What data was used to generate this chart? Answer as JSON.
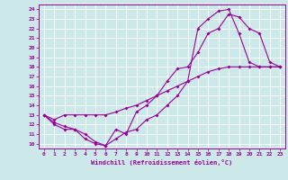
{
  "title": "",
  "xlabel": "Windchill (Refroidissement éolien,°C)",
  "ylabel": "",
  "xlim": [
    -0.5,
    23.5
  ],
  "ylim": [
    9.5,
    24.5
  ],
  "xticks": [
    0,
    1,
    2,
    3,
    4,
    5,
    6,
    7,
    8,
    9,
    10,
    11,
    12,
    13,
    14,
    15,
    16,
    17,
    18,
    19,
    20,
    21,
    22,
    23
  ],
  "yticks": [
    10,
    11,
    12,
    13,
    14,
    15,
    16,
    17,
    18,
    19,
    20,
    21,
    22,
    23,
    24
  ],
  "bg_color": "#cce8e8",
  "line_color": "#990099",
  "grid_color": "#ffffff",
  "line1_x": [
    0,
    1,
    2,
    3,
    4,
    5,
    6,
    7,
    8,
    9,
    10,
    11,
    12,
    13,
    14,
    15,
    16,
    17,
    18,
    19,
    20,
    21,
    22,
    23
  ],
  "line1_y": [
    13,
    12,
    11.5,
    11.5,
    10.5,
    10,
    9.8,
    11.5,
    11,
    13.3,
    14,
    15,
    16.5,
    17.8,
    18,
    19.5,
    21.5,
    22,
    23.5,
    23.2,
    22,
    21.5,
    18.5,
    18
  ],
  "line2_x": [
    0,
    1,
    2,
    3,
    4,
    5,
    6,
    7,
    8,
    9,
    10,
    11,
    12,
    13,
    14,
    15,
    16,
    17,
    18,
    19,
    20,
    21,
    22,
    23
  ],
  "line2_y": [
    13,
    12.5,
    13.0,
    13.0,
    13.0,
    13.0,
    13.0,
    13.3,
    13.7,
    14.0,
    14.5,
    15.0,
    15.5,
    16.0,
    16.5,
    17.0,
    17.5,
    17.8,
    18.0,
    18.0,
    18.0,
    18.0,
    18.0,
    18.0
  ],
  "line3_x": [
    0,
    1,
    2,
    3,
    4,
    5,
    6,
    7,
    8,
    9,
    10,
    11,
    12,
    13,
    14,
    15,
    16,
    17,
    18,
    19,
    20,
    21,
    22,
    23
  ],
  "line3_y": [
    13,
    12.2,
    11.8,
    11.5,
    11.0,
    10.2,
    9.8,
    10.5,
    11.2,
    11.5,
    12.5,
    13.0,
    14.0,
    15.0,
    16.5,
    22.0,
    23.0,
    23.8,
    24.0,
    21.5,
    18.5,
    18.0,
    18.0,
    18.0
  ]
}
